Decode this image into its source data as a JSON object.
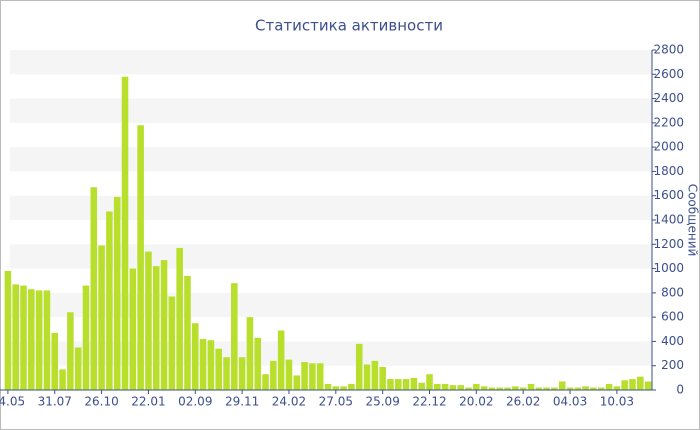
{
  "chart_data": {
    "type": "bar",
    "title": "Статистика активности",
    "y_label": "Сообщений",
    "categories": [
      "04.05",
      null,
      null,
      null,
      null,
      null,
      "31.07",
      null,
      null,
      null,
      null,
      null,
      "26.10",
      null,
      null,
      null,
      null,
      null,
      "22.01",
      null,
      null,
      null,
      null,
      null,
      "02.09",
      null,
      null,
      null,
      null,
      null,
      "29.11",
      null,
      null,
      null,
      null,
      null,
      "24.02",
      null,
      null,
      null,
      null,
      null,
      "27.05",
      null,
      null,
      null,
      null,
      null,
      "25.09",
      null,
      null,
      null,
      null,
      null,
      "22.12",
      null,
      null,
      null,
      null,
      null,
      "20.02",
      null,
      null,
      null,
      null,
      null,
      "26.02",
      null,
      null,
      null,
      null,
      null,
      "04.03",
      null,
      null,
      null,
      null,
      null,
      "10.03",
      null,
      null,
      null,
      null
    ],
    "values": [
      980,
      870,
      860,
      830,
      820,
      820,
      470,
      170,
      640,
      350,
      860,
      1670,
      1190,
      1470,
      1590,
      2580,
      1000,
      2180,
      1140,
      1020,
      1070,
      770,
      1170,
      940,
      550,
      420,
      410,
      340,
      270,
      880,
      270,
      600,
      430,
      130,
      240,
      490,
      250,
      120,
      230,
      220,
      220,
      50,
      30,
      30,
      50,
      380,
      210,
      240,
      190,
      90,
      90,
      90,
      100,
      60,
      130,
      50,
      50,
      40,
      40,
      20,
      50,
      30,
      20,
      20,
      20,
      30,
      20,
      50,
      20,
      20,
      20,
      70,
      20,
      20,
      30,
      20,
      20,
      50,
      30,
      80,
      90,
      110,
      70
    ],
    "color": "#b8df2c",
    "ylim": [
      0,
      2800
    ],
    "yticks": [
      0,
      200,
      400,
      600,
      800,
      1000,
      1200,
      1400,
      1600,
      1800,
      2000,
      2200,
      2400,
      2600,
      2800
    ],
    "y_axis_side": "right",
    "grid": true
  }
}
